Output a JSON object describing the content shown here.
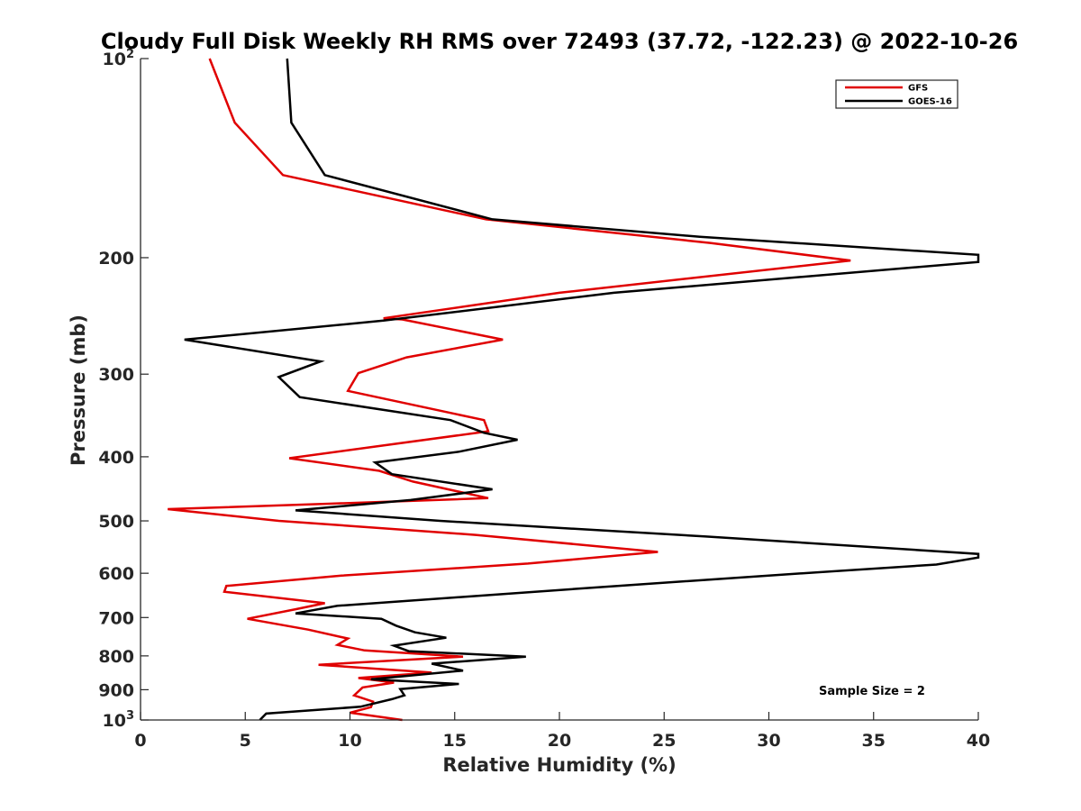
{
  "chart_data": {
    "type": "line",
    "title": "Cloudy Full Disk Weekly RH RMS over 72493 (37.72, -122.23) @ 2022-10-26",
    "xlabel": "Relative Humidity (%)",
    "ylabel": "Pressure (mb)",
    "xlim": [
      0,
      40
    ],
    "ylim": [
      100,
      1000
    ],
    "y_scale": "log",
    "y_reversed": true,
    "x_ticks": [
      "0",
      "5",
      "10",
      "15",
      "20",
      "25",
      "30",
      "35",
      "40"
    ],
    "y_ticks": [
      {
        "value": 100,
        "base": "10",
        "exp": "2"
      },
      {
        "value": 200,
        "label": "200"
      },
      {
        "value": 300,
        "label": "300"
      },
      {
        "value": 400,
        "label": "400"
      },
      {
        "value": 500,
        "label": "500"
      },
      {
        "value": 600,
        "label": "600"
      },
      {
        "value": 700,
        "label": "700"
      },
      {
        "value": 800,
        "label": "800"
      },
      {
        "value": 900,
        "label": "900"
      },
      {
        "value": 1000,
        "base": "10",
        "exp": "3"
      }
    ],
    "grid": false,
    "legend_position": "top-right",
    "annotation": "Sample Size = 2",
    "series": [
      {
        "name": "GFS",
        "color": "#e00000",
        "points": [
          [
            3.3,
            100
          ],
          [
            4.5,
            125
          ],
          [
            6.8,
            150
          ],
          [
            16.5,
            175
          ],
          [
            27.2,
            190
          ],
          [
            33.9,
            202
          ],
          [
            20.0,
            226
          ],
          [
            11.6,
            247
          ],
          [
            12.5,
            248
          ],
          [
            17.3,
            266
          ],
          [
            12.7,
            283
          ],
          [
            10.4,
            299
          ],
          [
            9.9,
            318
          ],
          [
            16.4,
            352
          ],
          [
            16.6,
            366
          ],
          [
            7.1,
            402
          ],
          [
            11.4,
            420
          ],
          [
            13.0,
            436
          ],
          [
            16.6,
            462
          ],
          [
            9.0,
            471
          ],
          [
            1.3,
            480
          ],
          [
            6.6,
            500
          ],
          [
            16.0,
            525
          ],
          [
            24.7,
            557
          ],
          [
            18.5,
            580
          ],
          [
            9.6,
            605
          ],
          [
            4.1,
            627
          ],
          [
            4.0,
            640
          ],
          [
            8.8,
            666
          ],
          [
            7.4,
            680
          ],
          [
            5.1,
            703
          ],
          [
            8.0,
            730
          ],
          [
            9.9,
            753
          ],
          [
            9.4,
            770
          ],
          [
            10.7,
            785
          ],
          [
            15.4,
            802
          ],
          [
            8.5,
            825
          ],
          [
            13.9,
            848
          ],
          [
            10.4,
            864
          ],
          [
            12.1,
            878
          ],
          [
            10.6,
            893
          ],
          [
            10.2,
            918
          ],
          [
            11.1,
            938
          ],
          [
            11.0,
            956
          ],
          [
            10.0,
            975
          ],
          [
            12.5,
            1000
          ]
        ]
      },
      {
        "name": "GOES-16",
        "color": "#000000",
        "points": [
          [
            7.0,
            100
          ],
          [
            7.2,
            125
          ],
          [
            8.8,
            150
          ],
          [
            16.8,
            175
          ],
          [
            26.7,
            186
          ],
          [
            40.0,
            198
          ],
          [
            40.0,
            203
          ],
          [
            22.6,
            226
          ],
          [
            11.6,
            249
          ],
          [
            2.1,
            266
          ],
          [
            8.6,
            287
          ],
          [
            6.6,
            303
          ],
          [
            7.6,
            325
          ],
          [
            14.8,
            352
          ],
          [
            16.4,
            368
          ],
          [
            18.0,
            377
          ],
          [
            15.2,
            393
          ],
          [
            11.2,
            408
          ],
          [
            12.0,
            425
          ],
          [
            16.8,
            448
          ],
          [
            12.9,
            465
          ],
          [
            7.4,
            482
          ],
          [
            14.3,
            500
          ],
          [
            27.0,
            528
          ],
          [
            40.0,
            561
          ],
          [
            40.0,
            568
          ],
          [
            38.0,
            582
          ],
          [
            31.6,
            600
          ],
          [
            23.4,
            625
          ],
          [
            15.2,
            652
          ],
          [
            9.4,
            672
          ],
          [
            7.4,
            690
          ],
          [
            11.5,
            703
          ],
          [
            12.2,
            720
          ],
          [
            13.1,
            737
          ],
          [
            14.6,
            751
          ],
          [
            12.1,
            772
          ],
          [
            12.8,
            787
          ],
          [
            18.4,
            802
          ],
          [
            13.9,
            822
          ],
          [
            15.4,
            842
          ],
          [
            11.0,
            868
          ],
          [
            15.2,
            882
          ],
          [
            12.4,
            898
          ],
          [
            12.6,
            918
          ],
          [
            12.0,
            930
          ],
          [
            10.5,
            955
          ],
          [
            6.0,
            978
          ],
          [
            5.7,
            1000
          ]
        ]
      }
    ]
  }
}
